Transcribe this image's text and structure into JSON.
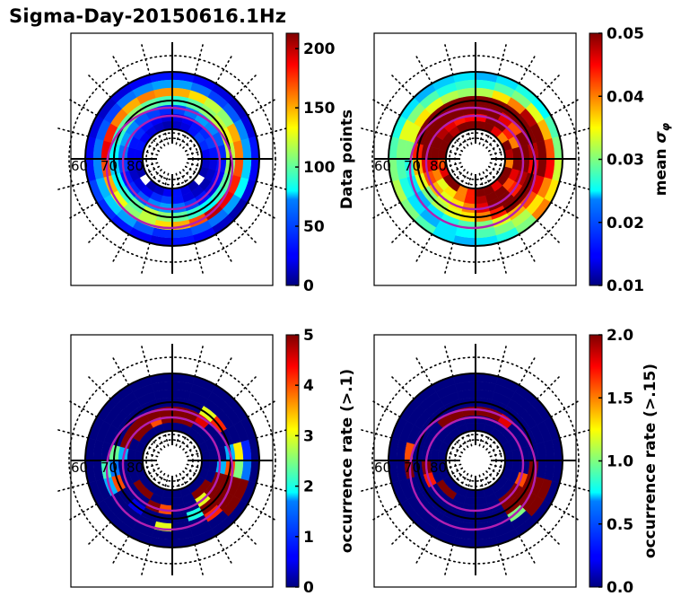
{
  "figure_title": "Sigma-Day-20150616.1Hz",
  "chart_data": [
    {
      "type": "heatmap",
      "projection": "polar (magnetic latitude / MLT)",
      "title": "",
      "latitude_labels": [
        "60",
        "70",
        "80"
      ],
      "colorbar": {
        "label": "Data points",
        "ticks": [
          "0",
          "50",
          "100",
          "150",
          "200"
        ],
        "range": [
          0,
          213
        ],
        "colormap": "jet"
      },
      "rings_note": "values per ring (outer to inner) x 24 MLT sectors, approximate",
      "rings": [
        [
          30,
          25,
          20,
          15,
          20,
          30,
          25,
          20,
          10,
          15,
          25,
          30,
          20,
          25,
          30,
          35,
          40,
          30,
          25,
          20,
          15,
          20,
          25,
          30
        ],
        [
          60,
          50,
          40,
          45,
          55,
          60,
          70,
          80,
          60,
          50,
          45,
          40,
          35,
          45,
          60,
          70,
          65,
          55,
          50,
          45,
          40,
          50,
          55,
          60
        ],
        [
          150,
          140,
          120,
          110,
          150,
          160,
          170,
          180,
          190,
          200,
          170,
          150,
          140,
          120,
          110,
          130,
          150,
          170,
          190,
          180,
          160,
          150,
          160,
          155
        ],
        [
          90,
          100,
          110,
          120,
          130,
          120,
          110,
          100,
          90,
          80,
          90,
          100,
          110,
          120,
          100,
          90,
          80,
          70,
          80,
          90,
          100,
          110,
          100,
          95
        ],
        [
          40,
          50,
          60,
          55,
          45,
          35,
          30,
          25,
          20,
          30,
          40,
          50,
          60,
          55,
          45,
          35,
          30,
          40,
          50,
          60,
          55,
          45,
          40,
          35
        ],
        [
          20,
          25,
          30,
          35,
          40,
          30,
          20,
          15,
          10,
          15,
          20,
          30,
          40,
          35,
          25,
          20,
          15,
          20,
          25,
          30,
          35,
          30,
          25,
          20
        ],
        [
          15,
          20,
          30,
          40,
          35,
          25,
          15,
          10,
          0,
          10,
          20,
          30,
          25,
          15,
          10,
          0,
          10,
          20,
          25,
          30,
          25,
          20,
          15,
          10
        ]
      ]
    },
    {
      "type": "heatmap",
      "projection": "polar (magnetic latitude / MLT)",
      "title": "",
      "latitude_labels": [
        "60",
        "70",
        "80"
      ],
      "colorbar": {
        "label": "mean σ_φ",
        "ticks": [
          "0.01",
          "0.02",
          "0.03",
          "0.04",
          "0.05"
        ],
        "range": [
          0.01,
          0.05
        ],
        "colormap": "jet"
      },
      "rings": [
        [
          0.022,
          0.024,
          0.026,
          0.025,
          0.028,
          0.03,
          0.033,
          0.036,
          0.04,
          0.03,
          0.026,
          0.024,
          0.022,
          0.024,
          0.028,
          0.03,
          0.032,
          0.03,
          0.028,
          0.026,
          0.024,
          0.022,
          0.023,
          0.024
        ],
        [
          0.026,
          0.028,
          0.03,
          0.034,
          0.038,
          0.042,
          0.045,
          0.04,
          0.036,
          0.032,
          0.03,
          0.028,
          0.025,
          0.024,
          0.022,
          0.024,
          0.026,
          0.028,
          0.03,
          0.034,
          0.03,
          0.028,
          0.026,
          0.027
        ],
        [
          0.032,
          0.036,
          0.04,
          0.048,
          0.05,
          0.05,
          0.05,
          0.046,
          0.042,
          0.038,
          0.034,
          0.03,
          0.028,
          0.026,
          0.024,
          0.022,
          0.024,
          0.026,
          0.03,
          0.034,
          0.036,
          0.034,
          0.032,
          0.031
        ],
        [
          0.05,
          0.05,
          0.05,
          0.05,
          0.05,
          0.048,
          0.045,
          0.05,
          0.05,
          0.05,
          0.044,
          0.04,
          0.036,
          0.034,
          0.032,
          0.03,
          0.034,
          0.038,
          0.044,
          0.05,
          0.05,
          0.05,
          0.05,
          0.05
        ],
        [
          0.05,
          0.05,
          0.046,
          0.042,
          0.05,
          0.05,
          0.05,
          0.048,
          0.044,
          0.05,
          0.05,
          0.046,
          0.04,
          0.036,
          0.034,
          0.038,
          0.042,
          0.046,
          0.05,
          0.05,
          0.05,
          0.05,
          0.05,
          0.05
        ],
        [
          0.045,
          0.05,
          0.05,
          0.044,
          0.04,
          0.05,
          0.05,
          0.046,
          0.042,
          0.05,
          0.05,
          0.048,
          0.044,
          0.04,
          0.036,
          0.034,
          0.04,
          0.046,
          0.05,
          0.05,
          0.048,
          0.046,
          0.044,
          0.045
        ],
        [
          0.05,
          0.05,
          0.046,
          0.04,
          0.05,
          0.048,
          0.04,
          0.05,
          0.05,
          0.046,
          0.05,
          0.05,
          0.044,
          0.04,
          0.05,
          0.05,
          0.046,
          0.042,
          0.05,
          0.05,
          0.05,
          0.048,
          0.05,
          0.05
        ]
      ]
    },
    {
      "type": "heatmap",
      "projection": "polar (magnetic latitude / MLT)",
      "title": "",
      "latitude_labels": [
        "60",
        "70",
        "80"
      ],
      "colorbar": {
        "label": "occurrence rate (>.1)",
        "ticks": [
          "0",
          "1",
          "2",
          "3",
          "4",
          "5"
        ],
        "range": [
          0,
          5
        ],
        "colormap": "jet"
      },
      "rings": [
        [
          0,
          0,
          0,
          0,
          0,
          0,
          0,
          0,
          0,
          0,
          0,
          0,
          0,
          0,
          0,
          0,
          0,
          0,
          0,
          0,
          0,
          0,
          0,
          0
        ],
        [
          0,
          0,
          0,
          0,
          0,
          0.8,
          1.2,
          5,
          5,
          0,
          0,
          0,
          0,
          0,
          0,
          0,
          0,
          0,
          0,
          0,
          0,
          0,
          0,
          0
        ],
        [
          0,
          0,
          0,
          0,
          0,
          3.2,
          2.5,
          5,
          5,
          4.2,
          0,
          0,
          3.0,
          0,
          0,
          0,
          1.5,
          2.2,
          0,
          0,
          0,
          0,
          0,
          0
        ],
        [
          0,
          0,
          3.0,
          4.2,
          0,
          1.5,
          4.0,
          5,
          5,
          5,
          2.0,
          0,
          0,
          0,
          0.5,
          0,
          4.0,
          1.2,
          2.4,
          0,
          0,
          0,
          0,
          0
        ],
        [
          5,
          5,
          4.5,
          0,
          0,
          0,
          1.5,
          5,
          5,
          3.0,
          0,
          0,
          4.0,
          5,
          0,
          0,
          0,
          0,
          1.5,
          5,
          5,
          5,
          5,
          5
        ],
        [
          5,
          5,
          0,
          0,
          0,
          0,
          0,
          0,
          5,
          5,
          0,
          0,
          0,
          0,
          5,
          5,
          0,
          0,
          0,
          0,
          5,
          5,
          4.0,
          5
        ],
        [
          0,
          0,
          0,
          0,
          0,
          0,
          0,
          0,
          0,
          0,
          0,
          0,
          0,
          0,
          0,
          0,
          0,
          0,
          0,
          0,
          0,
          0,
          0,
          0
        ]
      ]
    },
    {
      "type": "heatmap",
      "projection": "polar (magnetic latitude / MLT)",
      "title": "",
      "latitude_labels": [
        "60",
        "70",
        "80"
      ],
      "colorbar": {
        "label": "occurrence rate (>.15)",
        "ticks": [
          "0.0",
          "0.5",
          "1.0",
          "1.5",
          "2.0"
        ],
        "range": [
          0,
          2
        ],
        "colormap": "jet"
      },
      "rings": [
        [
          0,
          0,
          0,
          0,
          0,
          0,
          0,
          0,
          0,
          0,
          0,
          0,
          0,
          0,
          0,
          0,
          0,
          0,
          0,
          0,
          0,
          0,
          0,
          0
        ],
        [
          0,
          0,
          0,
          0,
          0,
          0,
          0,
          2,
          2,
          0,
          0,
          0,
          0,
          0,
          0,
          0,
          0,
          0,
          0,
          0,
          0,
          0,
          0,
          0
        ],
        [
          0,
          0,
          0,
          0,
          0,
          0,
          0,
          2,
          2,
          1.0,
          0,
          0,
          0,
          0,
          0,
          0,
          0,
          2,
          1.6,
          0,
          0,
          0,
          0,
          0
        ],
        [
          0,
          0,
          0,
          0,
          0,
          0,
          2,
          2,
          2,
          2,
          0,
          0,
          0,
          0,
          0,
          0,
          0,
          0,
          0,
          0,
          0,
          0,
          0,
          0
        ],
        [
          2,
          2,
          1.8,
          0,
          0,
          0,
          0,
          1.6,
          2,
          2,
          0,
          0,
          0,
          0,
          0,
          0,
          1.7,
          2,
          0,
          0,
          0,
          2,
          2,
          2
        ],
        [
          0,
          0,
          0,
          0,
          0,
          0,
          0,
          0,
          0,
          0,
          0,
          0,
          0,
          0,
          2,
          2,
          0,
          0,
          0,
          0,
          0,
          0,
          0,
          0
        ],
        [
          0,
          0,
          0,
          0,
          0,
          0,
          0,
          0,
          0,
          0,
          0,
          0,
          0,
          0,
          0,
          0,
          0,
          0,
          0,
          0,
          0,
          0,
          0,
          0
        ]
      ]
    }
  ],
  "colors": {
    "oval": "#b21fb2",
    "grid": "#000000",
    "jet": [
      "#00007f",
      "#0000ff",
      "#007fff",
      "#00ffff",
      "#7fff7f",
      "#ffff00",
      "#ff7f00",
      "#ff0000",
      "#7f0000"
    ]
  }
}
